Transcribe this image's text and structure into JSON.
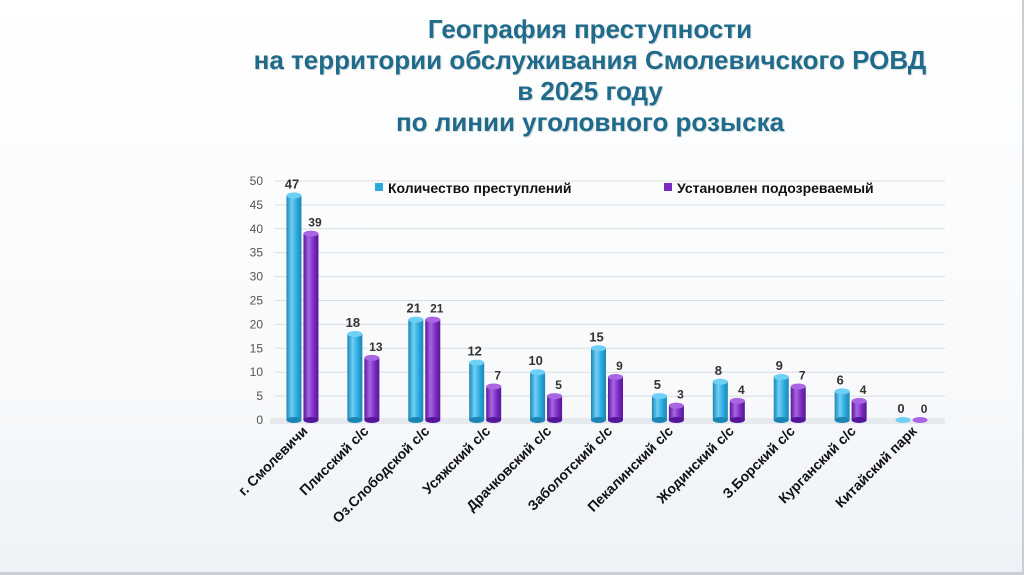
{
  "title": {
    "lines": [
      "География преступности",
      "на территории обслуживания Смолевичского РОВД",
      "в 2025 году",
      "по линии уголовного розыска"
    ]
  },
  "colors": {
    "series1": "#2aa9de",
    "series1_dark": "#1b86b3",
    "series1_light": "#6fd0f5",
    "series2": "#7a2bc0",
    "series2_dark": "#55169a",
    "series2_light": "#a866e3",
    "title": "#1f6b8c"
  },
  "chart_data": {
    "type": "bar",
    "categories": [
      "г. Смолевичи",
      "Плисский с/с",
      "Оз.Слободской с/с",
      "Усяжский с/с",
      "Драчковский с/с",
      "Заболотский с/с",
      "Пекалинский с/с",
      "Жодинский с/с",
      "З.Борский с/с",
      "Курганский с/с",
      "Китайский парк"
    ],
    "series": [
      {
        "name": "Количество преступлений",
        "values": [
          47,
          18,
          21,
          12,
          10,
          15,
          5,
          8,
          9,
          6,
          0
        ]
      },
      {
        "name": "Установлен подозреваемый",
        "values": [
          39,
          13,
          21,
          7,
          5,
          9,
          3,
          4,
          7,
          4,
          0
        ]
      }
    ],
    "ylim": [
      0,
      50
    ],
    "yticks": [
      0,
      5,
      10,
      15,
      20,
      25,
      30,
      35,
      40,
      45,
      50
    ],
    "grid": true,
    "legend": "top"
  }
}
